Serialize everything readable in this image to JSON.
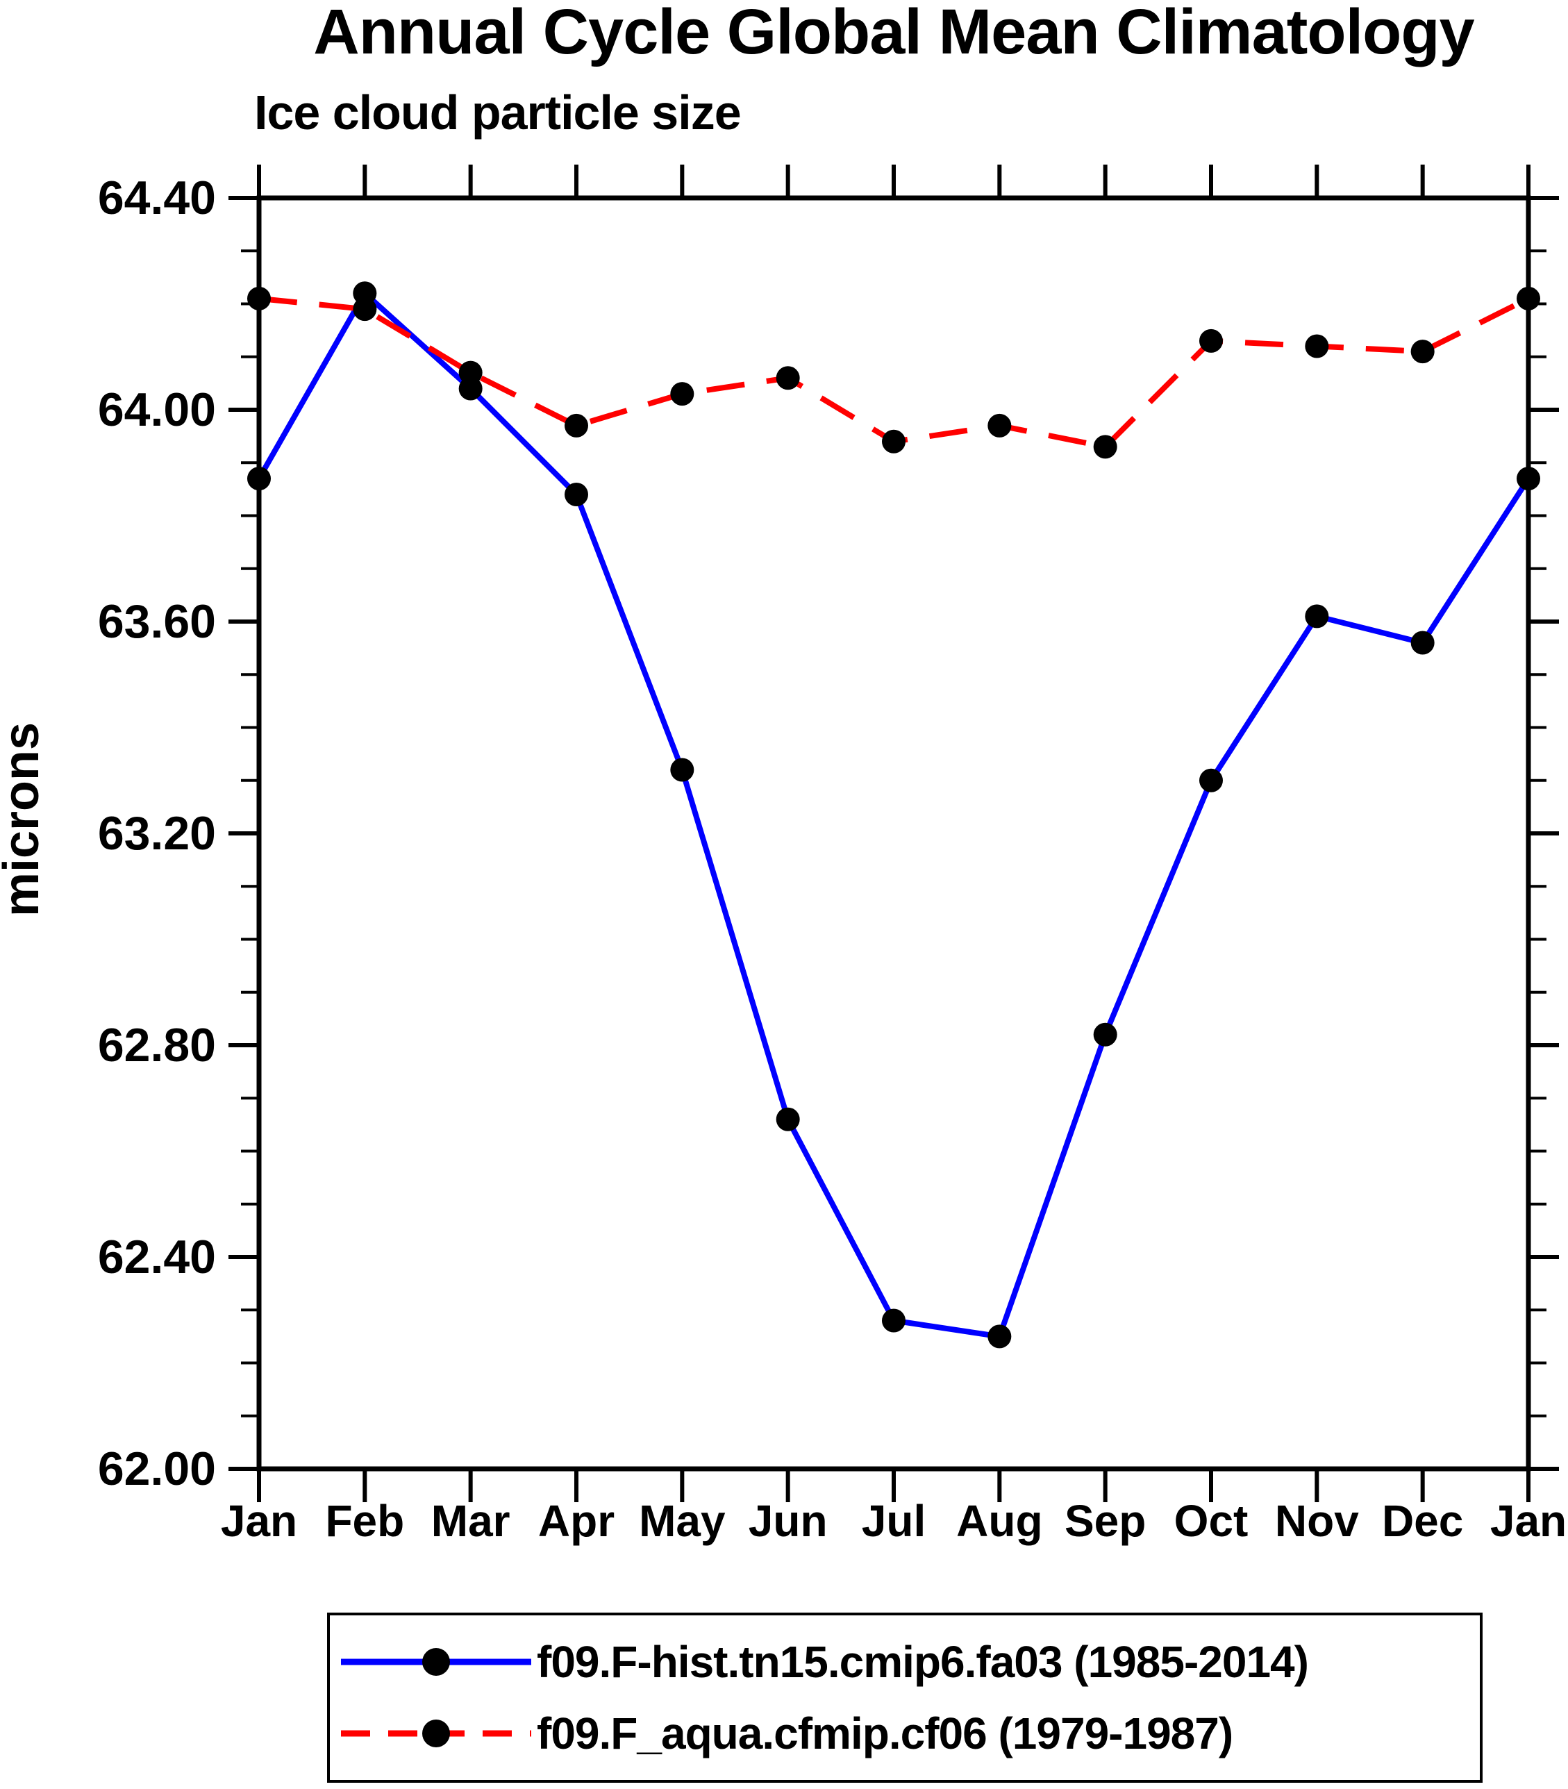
{
  "title": "Annual Cycle Global Mean Climatology",
  "subtitle": "Ice cloud particle size",
  "y_axis": {
    "label": "microns",
    "tick_labels": [
      "64.40",
      "64.00",
      "63.60",
      "63.20",
      "62.80",
      "62.40",
      "62.00"
    ]
  },
  "x_axis": {
    "tick_labels": [
      "Jan",
      "Feb",
      "Mar",
      "Apr",
      "May",
      "Jun",
      "Jul",
      "Aug",
      "Sep",
      "Oct",
      "Nov",
      "Dec",
      "Jan"
    ]
  },
  "legend": {
    "entries": [
      {
        "label": "f09.F-hist.tn15.cmip6.fa03 (1985-2014)"
      },
      {
        "label": "f09.F_aqua.cfmip.cf06 (1979-1987)"
      }
    ]
  },
  "colors": {
    "axis": "#000000",
    "marker": "#000000",
    "series1": "#0000ff",
    "series2": "#ff0000"
  },
  "chart_data": {
    "type": "line",
    "title": "Annual Cycle Global Mean Climatology",
    "subtitle": "Ice cloud particle size",
    "ylabel": "microns",
    "categories": [
      "Jan",
      "Feb",
      "Mar",
      "Apr",
      "May",
      "Jun",
      "Jul",
      "Aug",
      "Sep",
      "Oct",
      "Nov",
      "Dec",
      "Jan"
    ],
    "series": [
      {
        "name": "f09.F-hist.tn15.cmip6.fa03 (1985-2014)",
        "color": "#0000ff",
        "line_style": "solid",
        "marker": "filled-circle",
        "values": [
          63.87,
          64.22,
          64.04,
          63.84,
          63.32,
          62.66,
          62.28,
          62.25,
          62.82,
          63.3,
          63.61,
          63.56,
          63.87
        ]
      },
      {
        "name": "f09.F_aqua.cfmip.cf06 (1979-1987)",
        "color": "#ff0000",
        "line_style": "dashed",
        "marker": "filled-circle",
        "values": [
          64.21,
          64.19,
          64.07,
          63.97,
          64.03,
          64.06,
          63.94,
          63.97,
          63.93,
          64.13,
          64.12,
          64.11,
          64.21
        ]
      }
    ],
    "ylim": [
      62.0,
      64.4
    ],
    "ytick_major": 0.4,
    "ytick_minor": 0.1,
    "grid": false,
    "legend_position": "bottom"
  }
}
